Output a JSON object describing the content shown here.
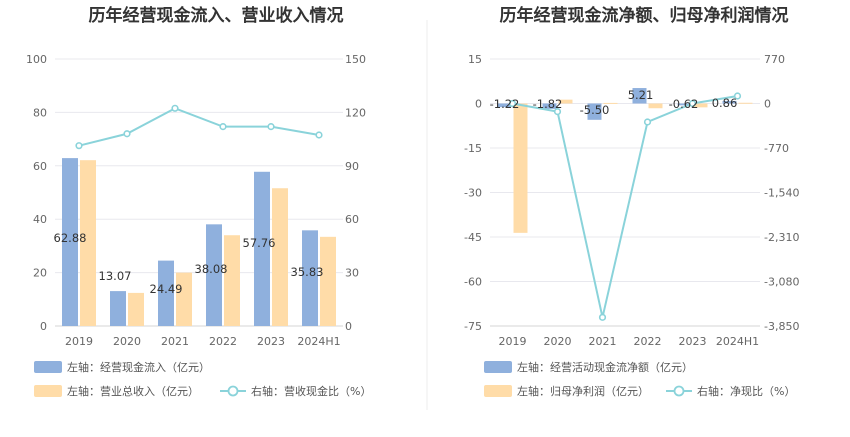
{
  "colors": {
    "bar_left": "#8fb0dd",
    "bar_right": "#ffdca8",
    "line": "#8ad3da",
    "grid": "#e8e8ee",
    "axis": "#d6d6d6",
    "divider": "#eeeeee"
  },
  "chart_data": [
    {
      "type": "bar",
      "title": "历年经营现金流入、营业收入情况",
      "categories": [
        "2019",
        "2020",
        "2021",
        "2022",
        "2023",
        "2024H1"
      ],
      "left_axis": {
        "ylim": [
          0,
          100
        ],
        "ticks": [
          "0",
          "20",
          "40",
          "60",
          "80",
          "100"
        ],
        "tick_values": [
          0,
          20,
          40,
          60,
          80,
          100
        ]
      },
      "right_axis": {
        "ylim": [
          0,
          150
        ],
        "ticks": [
          "0",
          "30",
          "60",
          "90",
          "120",
          "150"
        ],
        "tick_values": [
          0,
          30,
          60,
          90,
          120,
          150
        ]
      },
      "series": [
        {
          "name": "左轴：经营现金流入（亿元）",
          "type": "bar",
          "axis": "left",
          "values": [
            62.88,
            13.07,
            24.49,
            38.08,
            57.76,
            35.83
          ],
          "labels": [
            "62.88",
            "13.07",
            "24.49",
            "38.08",
            "57.76",
            "35.83"
          ]
        },
        {
          "name": "左轴：营业总收入（亿元）",
          "type": "bar",
          "axis": "left",
          "values": [
            62.1,
            12.4,
            20.0,
            34.0,
            51.6,
            33.4
          ]
        },
        {
          "name": "右轴：营收现金比（%）",
          "type": "line",
          "axis": "right",
          "values": [
            101.3,
            108.0,
            122.3,
            112.0,
            112.0,
            107.3
          ]
        }
      ]
    },
    {
      "type": "bar",
      "title": "历年经营现金流净额、归母净利润情况",
      "categories": [
        "2019",
        "2020",
        "2021",
        "2022",
        "2023",
        "2024H1"
      ],
      "left_axis": {
        "ylim": [
          -75,
          15
        ],
        "ticks": [
          "-75",
          "-60",
          "-45",
          "-30",
          "-15",
          "0",
          "15"
        ],
        "tick_values": [
          -75,
          -60,
          -45,
          -30,
          -15,
          0,
          15
        ]
      },
      "right_axis": {
        "ylim": [
          -3850,
          770
        ],
        "ticks": [
          "-3,850",
          "-3,080",
          "-2,310",
          "-1,540",
          "-770",
          "0",
          "770"
        ],
        "tick_values": [
          -3850,
          -3080,
          -2310,
          -1540,
          -770,
          0,
          770
        ]
      },
      "series": [
        {
          "name": "左轴：经营活动现金流净额（亿元）",
          "type": "bar",
          "axis": "left",
          "values": [
            -1.22,
            -1.82,
            -5.5,
            5.21,
            -0.62,
            0.86
          ],
          "labels": [
            "-1.22",
            "-1.82",
            "-5.50",
            "5.21",
            "-0.62",
            "0.86"
          ]
        },
        {
          "name": "左轴：归母净利润（亿元）",
          "type": "bar",
          "axis": "left",
          "values": [
            -43.6,
            1.3,
            0.2,
            -1.6,
            -1.3,
            0.25
          ]
        },
        {
          "name": "右轴：净现比（%）",
          "type": "line",
          "axis": "right",
          "values": [
            0,
            -140,
            -3700,
            -320,
            0,
            130
          ]
        }
      ]
    }
  ]
}
